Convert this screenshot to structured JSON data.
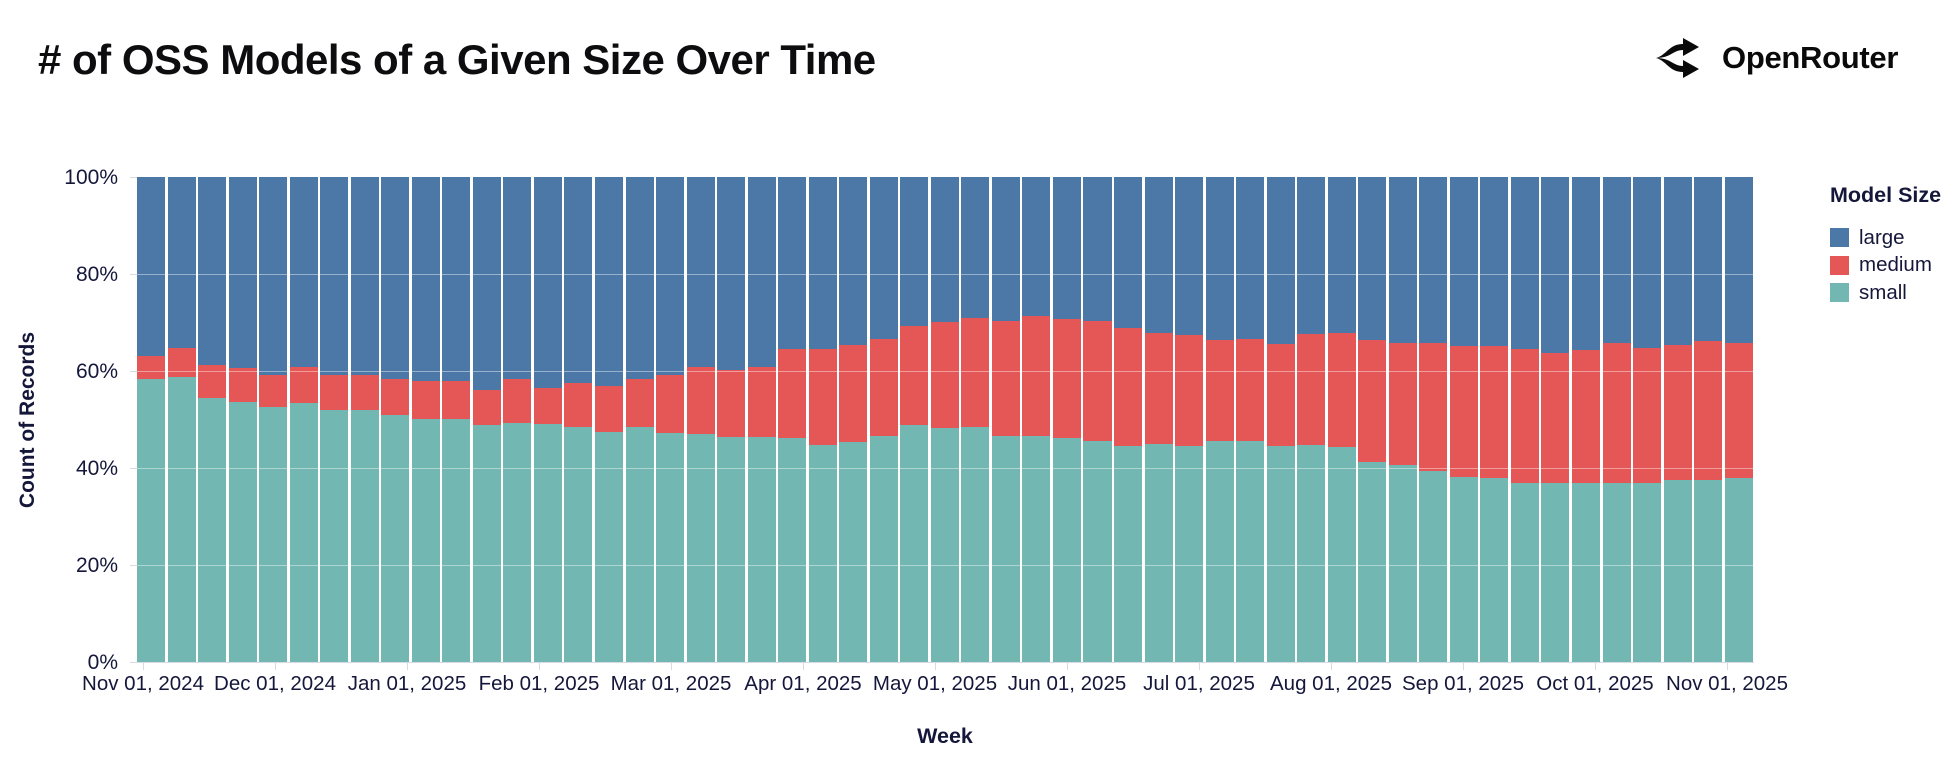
{
  "title": "# of OSS Models of a Given Size Over Time",
  "brand": {
    "name": "OpenRouter",
    "icon": "openrouter-fork-arrows"
  },
  "legend": {
    "title": "Model Size",
    "items": [
      {
        "label": "large",
        "color": "#4c78a8"
      },
      {
        "label": "medium",
        "color": "#e45756"
      },
      {
        "label": "small",
        "color": "#72b7b2"
      }
    ]
  },
  "axes": {
    "x_title": "Week",
    "y_title": "Count of Records",
    "y_ticks": [
      "0%",
      "20%",
      "40%",
      "60%",
      "80%",
      "100%"
    ],
    "x_ticks": [
      "Nov 01, 2024",
      "Dec 01, 2024",
      "Jan 01, 2025",
      "Feb 01, 2025",
      "Mar 01, 2025",
      "Apr 01, 2025",
      "May 01, 2025",
      "Jun 01, 2025",
      "Jul 01, 2025",
      "Aug 01, 2025",
      "Sep 01, 2025",
      "Oct 01, 2025",
      "Nov 01, 2025"
    ]
  },
  "chart_data": {
    "type": "bar",
    "variant": "stacked-normalized-100pct",
    "title": "# of OSS Models of a Given Size Over Time",
    "xlabel": "Week",
    "ylabel": "Count of Records",
    "ylim": [
      0,
      100
    ],
    "grid": true,
    "legend_position": "right",
    "x": [
      "2024-10-27",
      "2024-11-03",
      "2024-11-10",
      "2024-11-17",
      "2024-11-24",
      "2024-12-01",
      "2024-12-08",
      "2024-12-15",
      "2024-12-22",
      "2024-12-29",
      "2025-01-05",
      "2025-01-12",
      "2025-01-19",
      "2025-01-26",
      "2025-02-02",
      "2025-02-09",
      "2025-02-16",
      "2025-02-23",
      "2025-03-02",
      "2025-03-09",
      "2025-03-16",
      "2025-03-23",
      "2025-03-30",
      "2025-04-06",
      "2025-04-13",
      "2025-04-20",
      "2025-04-27",
      "2025-05-04",
      "2025-05-11",
      "2025-05-18",
      "2025-05-25",
      "2025-06-01",
      "2025-06-08",
      "2025-06-15",
      "2025-06-22",
      "2025-06-29",
      "2025-07-06",
      "2025-07-13",
      "2025-07-20",
      "2025-07-27",
      "2025-08-03",
      "2025-08-10",
      "2025-08-17",
      "2025-08-24",
      "2025-08-31",
      "2025-09-07",
      "2025-09-14",
      "2025-09-21",
      "2025-09-28",
      "2025-10-05",
      "2025-10-12",
      "2025-10-19",
      "2025-10-26"
    ],
    "series": [
      {
        "name": "small",
        "color": "#72b7b2",
        "values": [
          58.3,
          58.7,
          54.4,
          53.7,
          52.6,
          53.3,
          52.0,
          52.0,
          50.9,
          50.0,
          50.2,
          48.9,
          49.2,
          49.0,
          48.4,
          47.5,
          48.5,
          47.3,
          47.0,
          46.3,
          46.3,
          46.1,
          44.7,
          45.4,
          46.6,
          48.9,
          48.3,
          48.5,
          46.6,
          46.6,
          46.1,
          45.6,
          44.5,
          44.9,
          44.5,
          45.6,
          45.5,
          44.5,
          44.7,
          44.3,
          41.3,
          40.6,
          39.4,
          38.2,
          37.9,
          37.0,
          36.9,
          37.0,
          37.0,
          37.0,
          37.5,
          37.6,
          37.9
        ]
      },
      {
        "name": "medium",
        "color": "#e45756",
        "values": [
          4.7,
          6.0,
          6.8,
          6.9,
          6.6,
          7.6,
          7.2,
          7.2,
          7.4,
          7.9,
          7.7,
          7.2,
          9.1,
          7.5,
          9.2,
          9.4,
          9.8,
          11.9,
          13.8,
          14.0,
          14.5,
          18.4,
          19.9,
          20.0,
          20.1,
          20.4,
          21.8,
          22.4,
          23.7,
          24.7,
          24.6,
          24.7,
          24.4,
          23.0,
          22.9,
          20.8,
          21.1,
          21.1,
          22.9,
          23.5,
          25.0,
          25.1,
          26.4,
          27.0,
          27.3,
          27.5,
          26.9,
          27.4,
          28.7,
          27.7,
          27.9,
          28.6,
          27.9
        ]
      },
      {
        "name": "large",
        "color": "#4c78a8",
        "values": [
          37.0,
          35.3,
          38.8,
          39.4,
          40.8,
          39.1,
          40.8,
          40.8,
          41.7,
          42.1,
          42.1,
          43.9,
          41.7,
          43.5,
          42.4,
          43.1,
          41.7,
          40.8,
          39.2,
          39.7,
          39.2,
          35.5,
          35.4,
          34.6,
          33.3,
          30.7,
          29.9,
          29.1,
          29.7,
          28.7,
          29.3,
          29.7,
          31.1,
          32.1,
          32.6,
          33.6,
          33.4,
          34.4,
          32.4,
          32.2,
          33.7,
          34.3,
          34.2,
          34.8,
          34.8,
          35.5,
          36.2,
          35.6,
          34.3,
          35.3,
          34.6,
          33.8,
          34.2
        ]
      }
    ]
  },
  "layout_values": {
    "grid_pcts": [
      20,
      40,
      60,
      80
    ]
  }
}
